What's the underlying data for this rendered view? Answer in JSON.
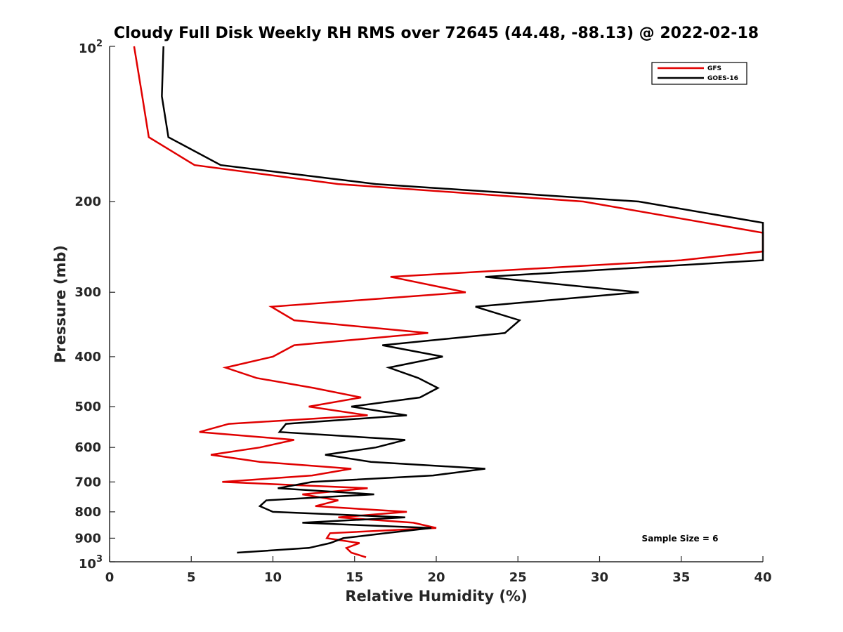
{
  "chart_data": {
    "type": "line",
    "title": "Cloudy Full Disk Weekly RH RMS over 72645 (44.48, -88.13) @ 2022-02-18",
    "xlabel": "Relative Humidity (%)",
    "ylabel": "Pressure (mb)",
    "xlim": [
      0,
      40
    ],
    "ylim": [
      100,
      1000
    ],
    "yscale": "log",
    "y_reversed": true,
    "grid": false,
    "legend_position": "top-right",
    "x_ticks": [
      "0",
      "5",
      "10",
      "15",
      "20",
      "25",
      "30",
      "35",
      "40"
    ],
    "y_ticks": [
      {
        "value": 100,
        "base": "10",
        "exp": "2"
      },
      {
        "value": 200,
        "label": "200"
      },
      {
        "value": 300,
        "label": "300"
      },
      {
        "value": 400,
        "label": "400"
      },
      {
        "value": 500,
        "label": "500"
      },
      {
        "value": 600,
        "label": "600"
      },
      {
        "value": 700,
        "label": "700"
      },
      {
        "value": 800,
        "label": "800"
      },
      {
        "value": 900,
        "label": "900"
      },
      {
        "value": 1000,
        "base": "10",
        "exp": "3"
      }
    ],
    "annotation": "Sample Size = 6",
    "series": [
      {
        "name": "GFS",
        "color": "#e00000",
        "points": [
          [
            1.5,
            100
          ],
          [
            2.0,
            125
          ],
          [
            2.4,
            150
          ],
          [
            5.2,
            170
          ],
          [
            14.0,
            185
          ],
          [
            29.0,
            200
          ],
          [
            40.0,
            230
          ],
          [
            40.0,
            250
          ],
          [
            35.0,
            260
          ],
          [
            17.2,
            280
          ],
          [
            21.8,
            300
          ],
          [
            9.9,
            320
          ],
          [
            11.3,
            340
          ],
          [
            19.5,
            360
          ],
          [
            11.3,
            380
          ],
          [
            10.0,
            400
          ],
          [
            7.1,
            420
          ],
          [
            9.0,
            440
          ],
          [
            12.5,
            460
          ],
          [
            15.4,
            480
          ],
          [
            12.2,
            500
          ],
          [
            15.8,
            520
          ],
          [
            7.3,
            540
          ],
          [
            5.5,
            560
          ],
          [
            11.3,
            580
          ],
          [
            9.2,
            600
          ],
          [
            6.2,
            620
          ],
          [
            9.2,
            640
          ],
          [
            14.8,
            660
          ],
          [
            12.4,
            680
          ],
          [
            6.9,
            700
          ],
          [
            15.8,
            720
          ],
          [
            11.8,
            740
          ],
          [
            14.0,
            760
          ],
          [
            12.6,
            780
          ],
          [
            18.2,
            800
          ],
          [
            14.0,
            820
          ],
          [
            18.6,
            840
          ],
          [
            20.0,
            860
          ],
          [
            13.5,
            880
          ],
          [
            13.3,
            900
          ],
          [
            15.3,
            920
          ],
          [
            14.5,
            940
          ],
          [
            14.8,
            960
          ],
          [
            15.7,
            980
          ]
        ]
      },
      {
        "name": "GOES-16",
        "color": "#000000",
        "points": [
          [
            3.3,
            100
          ],
          [
            3.2,
            125
          ],
          [
            3.6,
            150
          ],
          [
            6.8,
            170
          ],
          [
            16.3,
            185
          ],
          [
            32.4,
            200
          ],
          [
            40.0,
            220
          ],
          [
            40.0,
            260
          ],
          [
            23.0,
            280
          ],
          [
            32.4,
            300
          ],
          [
            22.4,
            320
          ],
          [
            25.1,
            340
          ],
          [
            24.2,
            360
          ],
          [
            16.7,
            380
          ],
          [
            20.4,
            400
          ],
          [
            17.1,
            420
          ],
          [
            18.9,
            440
          ],
          [
            20.1,
            460
          ],
          [
            19.0,
            480
          ],
          [
            14.8,
            500
          ],
          [
            18.2,
            520
          ],
          [
            10.8,
            540
          ],
          [
            10.4,
            560
          ],
          [
            18.1,
            580
          ],
          [
            16.3,
            600
          ],
          [
            13.2,
            620
          ],
          [
            16.0,
            640
          ],
          [
            23.0,
            660
          ],
          [
            19.8,
            680
          ],
          [
            12.4,
            700
          ],
          [
            10.3,
            720
          ],
          [
            16.2,
            740
          ],
          [
            9.6,
            760
          ],
          [
            9.2,
            780
          ],
          [
            10.0,
            800
          ],
          [
            18.1,
            820
          ],
          [
            11.8,
            840
          ],
          [
            19.7,
            860
          ],
          [
            16.9,
            880
          ],
          [
            14.3,
            900
          ],
          [
            13.5,
            920
          ],
          [
            12.2,
            940
          ],
          [
            7.8,
            960
          ]
        ]
      }
    ]
  }
}
